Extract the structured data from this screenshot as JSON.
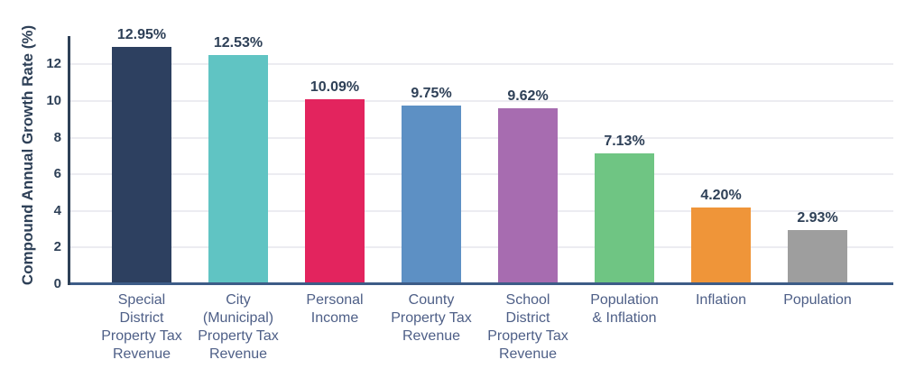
{
  "page": {
    "background": "#ffffff"
  },
  "chart_data": {
    "type": "bar",
    "title": "",
    "xlabel": "",
    "ylabel": "Compound Annual Growth Rate (%)",
    "ylim": [
      0,
      13.5
    ],
    "yticks": [
      0,
      2,
      4,
      6,
      8,
      10,
      12
    ],
    "grid": true,
    "legend_position": "none",
    "categories": [
      "Special District Property Tax Revenue",
      "City (Municipal) Property Tax Revenue",
      "Personal Income",
      "County Property Tax Revenue",
      "School District Property Tax Revenue",
      "Population & Inflation",
      "Inflation",
      "Population"
    ],
    "category_lines": [
      [
        "Special",
        "District",
        "Property Tax",
        "Revenue"
      ],
      [
        "City",
        "(Municipal)",
        "Property Tax",
        "Revenue"
      ],
      [
        "Personal",
        "Income"
      ],
      [
        "County",
        "Property Tax",
        "Revenue"
      ],
      [
        "School",
        "District",
        "Property Tax",
        "Revenue"
      ],
      [
        "Population",
        "& Inflation"
      ],
      [
        "Inflation"
      ],
      [
        "Population"
      ]
    ],
    "values": [
      12.95,
      12.53,
      10.09,
      9.75,
      9.62,
      7.13,
      4.2,
      2.93
    ],
    "value_labels": [
      "12.95%",
      "12.53%",
      "10.09%",
      "9.75%",
      "9.62%",
      "7.13%",
      "4.20%",
      "2.93%"
    ],
    "bar_colors": [
      "#2d4060",
      "#60c4c3",
      "#e3245e",
      "#5d90c4",
      "#a76cb0",
      "#6fc583",
      "#ef9539",
      "#9e9e9e"
    ],
    "colors": {
      "axis_line": "#2e4057",
      "baseline": "#3d5c87",
      "gridline": "#ececf1",
      "tick_label": "#2e4057",
      "value_label": "#2e4057",
      "category_label": "#4e5f87",
      "axis_title": "#2e4057"
    }
  }
}
